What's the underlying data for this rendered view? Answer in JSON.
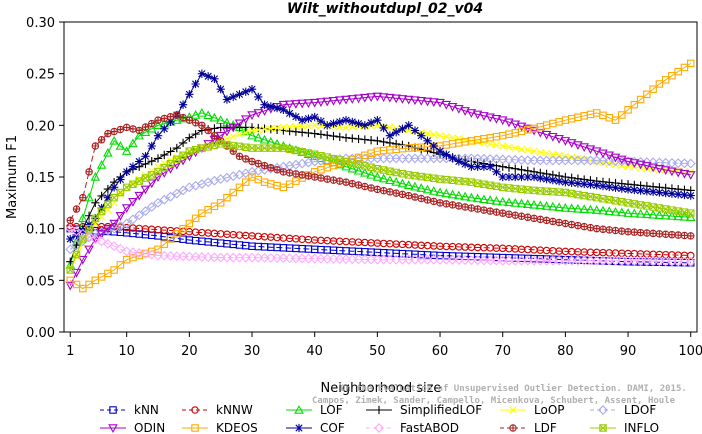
{
  "chart_data": {
    "type": "line",
    "title": "Wilt_withoutdupl_02_v04",
    "xlabel": "Neighborhood size",
    "ylabel": "Maximum F1",
    "xlim": [
      0,
      101
    ],
    "ylim": [
      0,
      0.3
    ],
    "xticks": [
      1,
      10,
      20,
      30,
      40,
      50,
      60,
      70,
      80,
      90,
      100
    ],
    "yticks": [
      "0.00",
      "0.05",
      "0.10",
      "0.15",
      "0.20",
      "0.25",
      "0.30"
    ],
    "legend_position": "bottom",
    "watermark": [
      "Campos, Zimek, Sander, Campello, Micenkova, Schubert, Assent, Houle",
      "On the Evaluation of Unsupervised Outlier Detection. DAMI, 2015."
    ],
    "series": [
      {
        "name": "kNN",
        "color": "#0000cc",
        "marker": "square",
        "dash": "6,3",
        "points": [
          [
            1,
            0.1
          ],
          [
            3,
            0.099
          ],
          [
            5,
            0.098
          ],
          [
            8,
            0.097
          ],
          [
            10,
            0.096
          ],
          [
            15,
            0.093
          ],
          [
            20,
            0.089
          ],
          [
            25,
            0.086
          ],
          [
            30,
            0.083
          ],
          [
            40,
            0.08
          ],
          [
            50,
            0.077
          ],
          [
            60,
            0.074
          ],
          [
            70,
            0.072
          ],
          [
            80,
            0.07
          ],
          [
            90,
            0.068
          ],
          [
            100,
            0.067
          ]
        ]
      },
      {
        "name": "kNNW",
        "color": "#cc0000",
        "marker": "circle",
        "dash": "6,3",
        "points": [
          [
            1,
            0.102
          ],
          [
            3,
            0.102
          ],
          [
            5,
            0.102
          ],
          [
            8,
            0.102
          ],
          [
            10,
            0.101
          ],
          [
            15,
            0.099
          ],
          [
            20,
            0.097
          ],
          [
            25,
            0.095
          ],
          [
            30,
            0.093
          ],
          [
            40,
            0.089
          ],
          [
            50,
            0.086
          ],
          [
            60,
            0.083
          ],
          [
            70,
            0.081
          ],
          [
            80,
            0.078
          ],
          [
            90,
            0.076
          ],
          [
            100,
            0.074
          ]
        ]
      },
      {
        "name": "LOF",
        "color": "#00dd00",
        "marker": "triangle",
        "dash": "",
        "points": [
          [
            1,
            0.065
          ],
          [
            3,
            0.11
          ],
          [
            5,
            0.15
          ],
          [
            8,
            0.185
          ],
          [
            10,
            0.175
          ],
          [
            12,
            0.19
          ],
          [
            15,
            0.2
          ],
          [
            18,
            0.205
          ],
          [
            20,
            0.208
          ],
          [
            22,
            0.212
          ],
          [
            25,
            0.205
          ],
          [
            28,
            0.198
          ],
          [
            30,
            0.19
          ],
          [
            35,
            0.18
          ],
          [
            40,
            0.17
          ],
          [
            45,
            0.16
          ],
          [
            50,
            0.15
          ],
          [
            55,
            0.142
          ],
          [
            60,
            0.135
          ],
          [
            65,
            0.13
          ],
          [
            70,
            0.126
          ],
          [
            75,
            0.123
          ],
          [
            80,
            0.12
          ],
          [
            85,
            0.118
          ],
          [
            90,
            0.115
          ],
          [
            95,
            0.113
          ],
          [
            100,
            0.111
          ]
        ]
      },
      {
        "name": "SimplifiedLOF",
        "color": "#000000",
        "marker": "plus",
        "dash": "",
        "points": [
          [
            1,
            0.068
          ],
          [
            3,
            0.1
          ],
          [
            5,
            0.125
          ],
          [
            8,
            0.145
          ],
          [
            10,
            0.155
          ],
          [
            12,
            0.16
          ],
          [
            15,
            0.168
          ],
          [
            18,
            0.178
          ],
          [
            20,
            0.188
          ],
          [
            22,
            0.195
          ],
          [
            25,
            0.198
          ],
          [
            30,
            0.198
          ],
          [
            35,
            0.195
          ],
          [
            40,
            0.192
          ],
          [
            45,
            0.188
          ],
          [
            50,
            0.185
          ],
          [
            55,
            0.18
          ],
          [
            60,
            0.172
          ],
          [
            65,
            0.165
          ],
          [
            70,
            0.16
          ],
          [
            75,
            0.155
          ],
          [
            80,
            0.15
          ],
          [
            85,
            0.146
          ],
          [
            90,
            0.143
          ],
          [
            95,
            0.14
          ],
          [
            100,
            0.137
          ]
        ]
      },
      {
        "name": "LoOP",
        "color": "#ffff00",
        "marker": "cross",
        "dash": "",
        "points": [
          [
            1,
            0.06
          ],
          [
            3,
            0.085
          ],
          [
            5,
            0.105
          ],
          [
            8,
            0.125
          ],
          [
            10,
            0.14
          ],
          [
            15,
            0.16
          ],
          [
            20,
            0.175
          ],
          [
            25,
            0.185
          ],
          [
            30,
            0.195
          ],
          [
            35,
            0.198
          ],
          [
            40,
            0.2
          ],
          [
            45,
            0.198
          ],
          [
            50,
            0.2
          ],
          [
            55,
            0.195
          ],
          [
            60,
            0.19
          ],
          [
            65,
            0.185
          ],
          [
            70,
            0.18
          ],
          [
            75,
            0.175
          ],
          [
            80,
            0.17
          ],
          [
            85,
            0.165
          ],
          [
            90,
            0.16
          ],
          [
            95,
            0.157
          ],
          [
            100,
            0.155
          ]
        ]
      },
      {
        "name": "LDOF",
        "color": "#aaaaee",
        "marker": "diamond",
        "dash": "6,3",
        "points": [
          [
            1,
            0.08
          ],
          [
            3,
            0.088
          ],
          [
            5,
            0.095
          ],
          [
            8,
            0.1
          ],
          [
            10,
            0.105
          ],
          [
            15,
            0.125
          ],
          [
            20,
            0.14
          ],
          [
            25,
            0.148
          ],
          [
            30,
            0.155
          ],
          [
            35,
            0.16
          ],
          [
            40,
            0.165
          ],
          [
            45,
            0.168
          ],
          [
            50,
            0.168
          ],
          [
            55,
            0.168
          ],
          [
            60,
            0.168
          ],
          [
            65,
            0.168
          ],
          [
            70,
            0.167
          ],
          [
            75,
            0.166
          ],
          [
            80,
            0.166
          ],
          [
            85,
            0.166
          ],
          [
            90,
            0.165
          ],
          [
            95,
            0.164
          ],
          [
            100,
            0.163
          ]
        ]
      },
      {
        "name": "ODIN",
        "color": "#aa00cc",
        "marker": "invtriangle",
        "dash": "",
        "points": [
          [
            1,
            0.045
          ],
          [
            3,
            0.07
          ],
          [
            5,
            0.09
          ],
          [
            8,
            0.105
          ],
          [
            10,
            0.12
          ],
          [
            15,
            0.15
          ],
          [
            20,
            0.17
          ],
          [
            25,
            0.19
          ],
          [
            30,
            0.21
          ],
          [
            35,
            0.22
          ],
          [
            40,
            0.222
          ],
          [
            45,
            0.225
          ],
          [
            50,
            0.228
          ],
          [
            55,
            0.225
          ],
          [
            60,
            0.222
          ],
          [
            65,
            0.212
          ],
          [
            70,
            0.205
          ],
          [
            75,
            0.195
          ],
          [
            80,
            0.185
          ],
          [
            85,
            0.175
          ],
          [
            90,
            0.165
          ],
          [
            95,
            0.158
          ],
          [
            100,
            0.152
          ]
        ]
      },
      {
        "name": "KDEOS",
        "color": "#ffaa00",
        "marker": "square",
        "dash": "",
        "points": [
          [
            1,
            0.05
          ],
          [
            3,
            0.042
          ],
          [
            5,
            0.05
          ],
          [
            8,
            0.06
          ],
          [
            10,
            0.07
          ],
          [
            15,
            0.08
          ],
          [
            18,
            0.095
          ],
          [
            20,
            0.105
          ],
          [
            22,
            0.115
          ],
          [
            25,
            0.125
          ],
          [
            28,
            0.14
          ],
          [
            30,
            0.15
          ],
          [
            32,
            0.145
          ],
          [
            35,
            0.14
          ],
          [
            40,
            0.155
          ],
          [
            45,
            0.165
          ],
          [
            50,
            0.175
          ],
          [
            55,
            0.178
          ],
          [
            60,
            0.18
          ],
          [
            65,
            0.185
          ],
          [
            70,
            0.19
          ],
          [
            75,
            0.197
          ],
          [
            80,
            0.205
          ],
          [
            85,
            0.212
          ],
          [
            88,
            0.205
          ],
          [
            90,
            0.215
          ],
          [
            95,
            0.24
          ],
          [
            100,
            0.26
          ]
        ]
      },
      {
        "name": "COF",
        "color": "#000099",
        "marker": "star",
        "dash": "",
        "points": [
          [
            1,
            0.09
          ],
          [
            3,
            0.098
          ],
          [
            5,
            0.11
          ],
          [
            8,
            0.14
          ],
          [
            10,
            0.155
          ],
          [
            13,
            0.17
          ],
          [
            15,
            0.19
          ],
          [
            18,
            0.21
          ],
          [
            20,
            0.23
          ],
          [
            22,
            0.25
          ],
          [
            24,
            0.245
          ],
          [
            26,
            0.225
          ],
          [
            28,
            0.23
          ],
          [
            30,
            0.235
          ],
          [
            32,
            0.22
          ],
          [
            35,
            0.215
          ],
          [
            38,
            0.205
          ],
          [
            40,
            0.208
          ],
          [
            42,
            0.2
          ],
          [
            45,
            0.205
          ],
          [
            48,
            0.2
          ],
          [
            50,
            0.205
          ],
          [
            52,
            0.19
          ],
          [
            55,
            0.2
          ],
          [
            58,
            0.185
          ],
          [
            60,
            0.175
          ],
          [
            63,
            0.165
          ],
          [
            65,
            0.16
          ],
          [
            68,
            0.16
          ],
          [
            70,
            0.15
          ],
          [
            75,
            0.15
          ],
          [
            80,
            0.145
          ],
          [
            85,
            0.142
          ],
          [
            90,
            0.138
          ],
          [
            95,
            0.135
          ],
          [
            100,
            0.132
          ]
        ]
      },
      {
        "name": "FastABOD",
        "color": "#ffaaff",
        "marker": "diamond",
        "dash": "6,3",
        "points": [
          [
            1,
            0.1
          ],
          [
            3,
            0.095
          ],
          [
            5,
            0.09
          ],
          [
            8,
            0.083
          ],
          [
            10,
            0.078
          ],
          [
            15,
            0.074
          ],
          [
            20,
            0.073
          ],
          [
            25,
            0.072
          ],
          [
            30,
            0.072
          ],
          [
            40,
            0.071
          ],
          [
            50,
            0.07
          ],
          [
            60,
            0.07
          ],
          [
            70,
            0.069
          ],
          [
            80,
            0.069
          ],
          [
            90,
            0.069
          ],
          [
            100,
            0.068
          ]
        ]
      },
      {
        "name": "LDF",
        "color": "#aa2222",
        "marker": "circleplus",
        "dash": "6,3",
        "points": [
          [
            1,
            0.108
          ],
          [
            3,
            0.13
          ],
          [
            5,
            0.18
          ],
          [
            7,
            0.192
          ],
          [
            10,
            0.198
          ],
          [
            12,
            0.195
          ],
          [
            15,
            0.205
          ],
          [
            18,
            0.21
          ],
          [
            20,
            0.205
          ],
          [
            22,
            0.2
          ],
          [
            25,
            0.185
          ],
          [
            28,
            0.17
          ],
          [
            30,
            0.165
          ],
          [
            35,
            0.155
          ],
          [
            40,
            0.15
          ],
          [
            45,
            0.145
          ],
          [
            50,
            0.138
          ],
          [
            55,
            0.132
          ],
          [
            60,
            0.125
          ],
          [
            65,
            0.12
          ],
          [
            70,
            0.115
          ],
          [
            75,
            0.11
          ],
          [
            80,
            0.105
          ],
          [
            85,
            0.1
          ],
          [
            90,
            0.097
          ],
          [
            95,
            0.095
          ],
          [
            100,
            0.093
          ]
        ]
      },
      {
        "name": "INFLO",
        "color": "#99cc00",
        "marker": "squarex",
        "dash": "",
        "points": [
          [
            1,
            0.06
          ],
          [
            3,
            0.09
          ],
          [
            5,
            0.11
          ],
          [
            8,
            0.13
          ],
          [
            10,
            0.14
          ],
          [
            15,
            0.155
          ],
          [
            20,
            0.175
          ],
          [
            25,
            0.182
          ],
          [
            30,
            0.178
          ],
          [
            35,
            0.178
          ],
          [
            40,
            0.172
          ],
          [
            45,
            0.165
          ],
          [
            50,
            0.158
          ],
          [
            55,
            0.152
          ],
          [
            60,
            0.148
          ],
          [
            65,
            0.145
          ],
          [
            70,
            0.14
          ],
          [
            75,
            0.137
          ],
          [
            80,
            0.135
          ],
          [
            85,
            0.13
          ],
          [
            90,
            0.125
          ],
          [
            95,
            0.12
          ],
          [
            100,
            0.115
          ]
        ]
      }
    ]
  }
}
